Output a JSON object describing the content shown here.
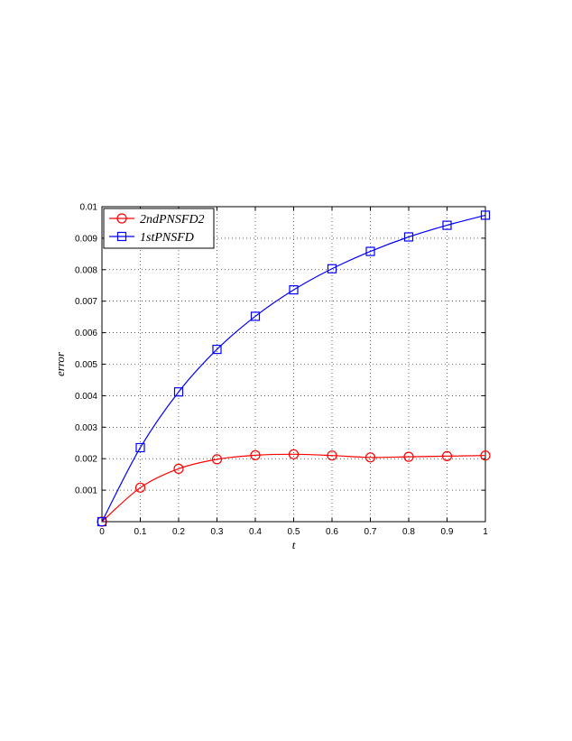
{
  "chart_data": {
    "type": "line",
    "title": "",
    "xlabel": "t",
    "ylabel": "error",
    "xlim": [
      0,
      1
    ],
    "ylim": [
      0,
      0.01
    ],
    "grid": true,
    "grid_style": "dotted",
    "legend_position": "top-left",
    "x": [
      0,
      0.1,
      0.2,
      0.3,
      0.4,
      0.5,
      0.6,
      0.7,
      0.8,
      0.9,
      1.0
    ],
    "xticks": [
      "0",
      "0.1",
      "0.2",
      "0.3",
      "0.4",
      "0.5",
      "0.6",
      "0.7",
      "0.8",
      "0.9",
      "1"
    ],
    "yticks": [
      "0.001",
      "0.002",
      "0.003",
      "0.004",
      "0.005",
      "0.006",
      "0.007",
      "0.008",
      "0.009",
      "0.01"
    ],
    "series": [
      {
        "name": "2ndPNSFD2",
        "color": "#ff0000",
        "marker": "circle",
        "values": [
          0,
          0.00108,
          0.00168,
          0.00198,
          0.00211,
          0.00214,
          0.0021,
          0.00204,
          0.00206,
          0.00208,
          0.0021
        ]
      },
      {
        "name": "1stPNSFD",
        "color": "#0000ff",
        "marker": "square",
        "values": [
          0,
          0.00235,
          0.00412,
          0.00547,
          0.00652,
          0.00736,
          0.00803,
          0.00858,
          0.00904,
          0.00941,
          0.00973
        ]
      }
    ]
  }
}
